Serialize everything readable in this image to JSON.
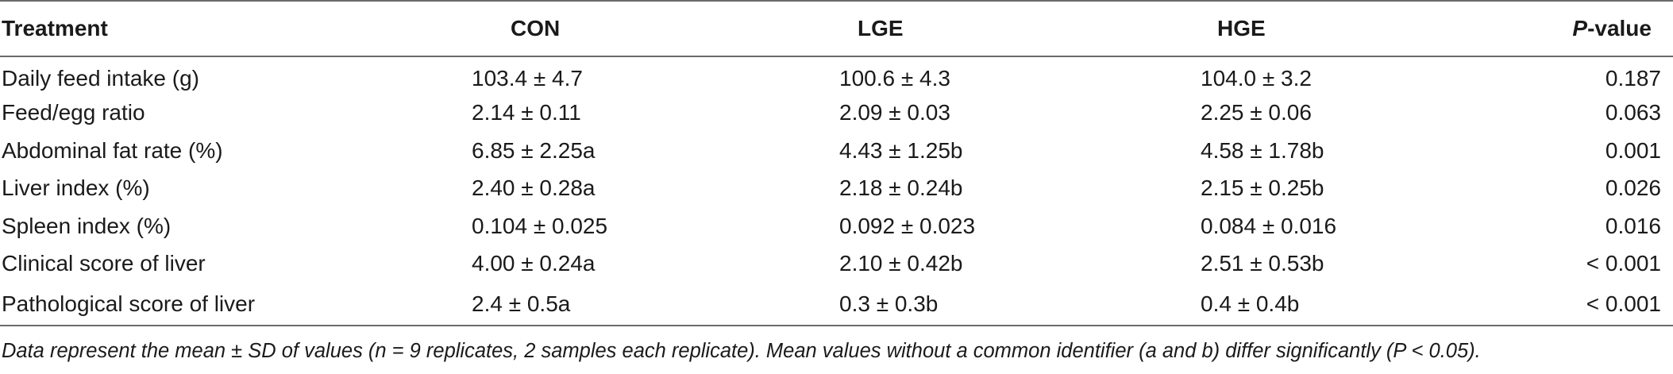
{
  "table": {
    "headers": {
      "treatment": "Treatment",
      "con": "CON",
      "lge": "LGE",
      "hge": "HGE",
      "p_italic": "P",
      "p_rest": "-value"
    },
    "rows": [
      {
        "label": "Daily feed intake (g)",
        "con": "103.4 ± 4.7",
        "lge": "100.6 ± 4.3",
        "hge": "104.0 ± 3.2",
        "p": "0.187"
      },
      {
        "label": "Feed/egg ratio",
        "con": "2.14 ± 0.11",
        "lge": "2.09 ± 0.03",
        "hge": "2.25 ± 0.06",
        "p": "0.063"
      },
      {
        "label": "Abdominal fat rate (%)",
        "con": "6.85 ± 2.25a",
        "lge": "4.43 ± 1.25b",
        "hge": "4.58 ± 1.78b",
        "p": "0.001"
      },
      {
        "label": "Liver index (%)",
        "con": "2.40 ± 0.28a",
        "lge": "2.18 ± 0.24b",
        "hge": "2.15 ± 0.25b",
        "p": "0.026"
      },
      {
        "label": "Spleen index (%)",
        "con": "0.104 ± 0.025",
        "lge": "0.092 ± 0.023",
        "hge": "0.084 ± 0.016",
        "p": "0.016"
      },
      {
        "label": "Clinical score of liver",
        "con": "4.00 ± 0.24a",
        "lge": "2.10 ± 0.42b",
        "hge": "2.51 ± 0.53b",
        "p": "< 0.001"
      },
      {
        "label": "Pathological score of liver",
        "con": "2.4 ± 0.5a",
        "lge": "0.3 ± 0.3b",
        "hge": "0.4 ± 0.4b",
        "p": "< 0.001"
      }
    ]
  },
  "footnote": "Data represent the mean ± SD of values (n = 9 replicates, 2 samples each replicate). Mean values without a common identifier (a and b) differ significantly (P < 0.05)."
}
